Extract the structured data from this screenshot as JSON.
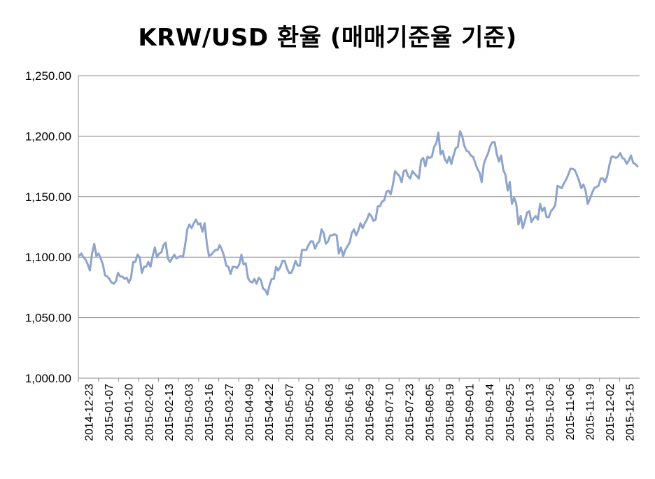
{
  "chart_data": {
    "type": "line",
    "title": "KRW/USD 환율 (매매기준율 기준)",
    "xlabel": "",
    "ylabel": "",
    "ylim": [
      1000,
      1250
    ],
    "grid": true,
    "legend": "none",
    "line_color": "#8EA4CC",
    "yticks": [
      "1,000.00",
      "1,050.00",
      "1,100.00",
      "1,150.00",
      "1,200.00",
      "1,250.00"
    ],
    "yticks_values": [
      1000,
      1050,
      1100,
      1150,
      1200,
      1250
    ],
    "xticks": [
      "2014-12-23",
      "2015-01-07",
      "2015-01-20",
      "2015-02-02",
      "2015-02-13",
      "2015-03-03",
      "2015-03-16",
      "2015-03-27",
      "2015-04-09",
      "2015-04-22",
      "2015-05-07",
      "2015-05-20",
      "2015-06-03",
      "2015-06-16",
      "2015-06-29",
      "2015-07-10",
      "2015-07-23",
      "2015-08-05",
      "2015-08-19",
      "2015-09-01",
      "2015-09-14",
      "2015-09-25",
      "2015-10-13",
      "2015-10-26",
      "2015-11-06",
      "2015-11-19",
      "2015-12-02",
      "2015-12-15"
    ],
    "values": [
      1101,
      1103,
      1100,
      1098,
      1094,
      1089,
      1103,
      1111,
      1101,
      1103,
      1099,
      1094,
      1085,
      1084,
      1082,
      1079,
      1078,
      1080,
      1087,
      1084,
      1084,
      1082,
      1083,
      1079,
      1083,
      1096,
      1096,
      1102,
      1100,
      1087,
      1092,
      1092,
      1096,
      1092,
      1101,
      1108,
      1100,
      1103,
      1104,
      1110,
      1112,
      1099,
      1096,
      1099,
      1102,
      1099,
      1100,
      1101,
      1100,
      1110,
      1123,
      1127,
      1124,
      1128,
      1131,
      1127,
      1128,
      1121,
      1128,
      1112,
      1101,
      1102,
      1104,
      1106,
      1106,
      1110,
      1106,
      1101,
      1093,
      1092,
      1086,
      1092,
      1092,
      1091,
      1094,
      1102,
      1094,
      1095,
      1083,
      1080,
      1079,
      1082,
      1078,
      1083,
      1081,
      1074,
      1073,
      1069,
      1077,
      1082,
      1082,
      1092,
      1089,
      1092,
      1097,
      1097,
      1091,
      1087,
      1087,
      1091,
      1097,
      1093,
      1093,
      1106,
      1106,
      1106,
      1110,
      1113,
      1113,
      1107,
      1111,
      1113,
      1123,
      1120,
      1111,
      1113,
      1118,
      1118,
      1119,
      1118,
      1103,
      1108,
      1101,
      1106,
      1109,
      1112,
      1120,
      1123,
      1118,
      1122,
      1128,
      1124,
      1128,
      1131,
      1136,
      1134,
      1130,
      1131,
      1142,
      1142,
      1146,
      1147,
      1154,
      1155,
      1152,
      1160,
      1171,
      1169,
      1167,
      1162,
      1171,
      1172,
      1167,
      1165,
      1171,
      1169,
      1167,
      1165,
      1180,
      1182,
      1175,
      1183,
      1182,
      1183,
      1191,
      1194,
      1203,
      1185,
      1188,
      1181,
      1178,
      1183,
      1177,
      1184,
      1190,
      1191,
      1204,
      1200,
      1192,
      1188,
      1187,
      1184,
      1183,
      1178,
      1173,
      1170,
      1162,
      1177,
      1182,
      1186,
      1192,
      1195,
      1195,
      1185,
      1179,
      1184,
      1172,
      1168,
      1155,
      1162,
      1144,
      1149,
      1144,
      1127,
      1134,
      1124,
      1130,
      1137,
      1138,
      1129,
      1132,
      1134,
      1131,
      1144,
      1138,
      1141,
      1133,
      1133,
      1138,
      1140,
      1143,
      1159,
      1158,
      1157,
      1161,
      1164,
      1168,
      1173,
      1173,
      1172,
      1168,
      1163,
      1157,
      1160,
      1155,
      1144,
      1148,
      1153,
      1157,
      1158,
      1159,
      1165,
      1165,
      1162,
      1167,
      1176,
      1183,
      1183,
      1182,
      1183,
      1186,
      1182,
      1181,
      1177,
      1180,
      1184,
      1178,
      1177,
      1175
    ]
  }
}
